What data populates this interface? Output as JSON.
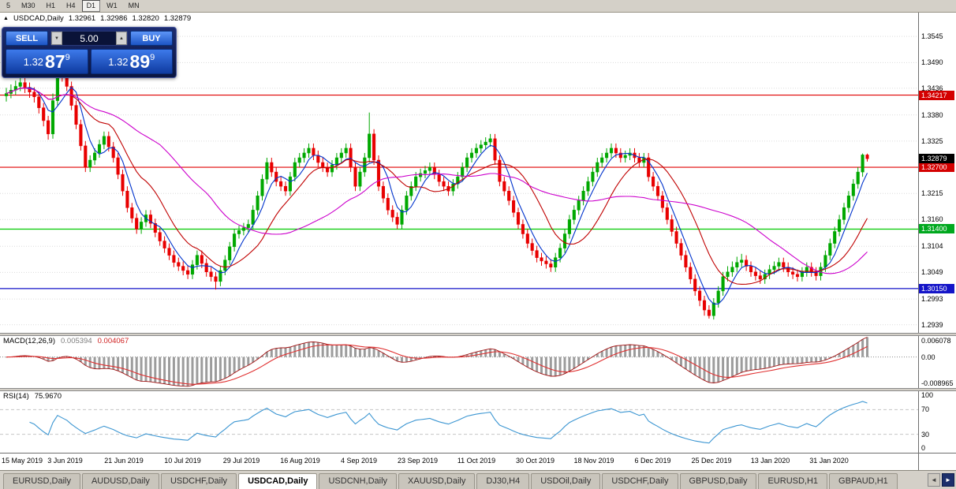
{
  "toolbar": {
    "timeframes": [
      {
        "label": "5",
        "active": false
      },
      {
        "label": "M30",
        "active": false
      },
      {
        "label": "H1",
        "active": false
      },
      {
        "label": "H4",
        "active": false
      },
      {
        "label": "D1",
        "active": true
      },
      {
        "label": "W1",
        "active": false
      },
      {
        "label": "MN",
        "active": false
      }
    ]
  },
  "chart_header": {
    "collapse_glyph": "▲",
    "symbol": "USDCAD,Daily",
    "open": "1.32961",
    "high": "1.32986",
    "low": "1.32820",
    "close": "1.32879"
  },
  "trade_panel": {
    "sell_label": "SELL",
    "buy_label": "BUY",
    "volume": "5.00",
    "spin_down": "▼",
    "spin_up": "▲",
    "sell_price": {
      "base": "1.32",
      "big": "87",
      "sup": "9"
    },
    "buy_price": {
      "base": "1.32",
      "big": "89",
      "sup": "9"
    }
  },
  "tabs": {
    "scroll_left": "◄",
    "scroll_right": "►",
    "items": [
      {
        "label": "EURUSD,Daily",
        "active": false
      },
      {
        "label": "AUDUSD,Daily",
        "active": false
      },
      {
        "label": "USDCHF,Daily",
        "active": false
      },
      {
        "label": "USDCAD,Daily",
        "active": true
      },
      {
        "label": "USDCNH,Daily",
        "active": false
      },
      {
        "label": "XAUUSD,Daily",
        "active": false
      },
      {
        "label": "DJ30,H4",
        "active": false
      },
      {
        "label": "USDOil,Daily",
        "active": false
      },
      {
        "label": "USDCHF,Daily",
        "active": false
      },
      {
        "label": "GBPUSD,Daily",
        "active": false
      },
      {
        "label": "EURUSD,H1",
        "active": false
      },
      {
        "label": "GBPAUD,H1",
        "active": false
      }
    ]
  },
  "chart_data": {
    "type": "candlestick",
    "title": "USDCAD,Daily",
    "ylim": [
      1.2922,
      1.3595
    ],
    "price_axis_ticks": [
      "1.3545",
      "1.3490",
      "1.3436",
      "1.3380",
      "1.3325",
      "1.3270",
      "1.3215",
      "1.3160",
      "1.3104",
      "1.3049",
      "1.2993",
      "1.2939"
    ],
    "x_labels": [
      "15 May 2019",
      "3 Jun 2019",
      "21 Jun 2019",
      "10 Jul 2019",
      "29 Jul 2019",
      "16 Aug 2019",
      "4 Sep 2019",
      "23 Sep 2019",
      "11 Oct 2019",
      "30 Oct 2019",
      "18 Nov 2019",
      "6 Dec 2019",
      "25 Dec 2019",
      "13 Jan 2020",
      "31 Jan 2020"
    ],
    "current_price": {
      "value": 1.32879,
      "label": "1.32879",
      "tag_bg": "#000000"
    },
    "hlines": [
      {
        "price": 1.34217,
        "label": "1.34217",
        "color": "#e00000",
        "tag_bg": "#d40000"
      },
      {
        "price": 1.327,
        "label": "1.32700",
        "color": "#e00000",
        "tag_bg": "#d40000"
      },
      {
        "price": 1.314,
        "label": "1.31400",
        "color": "#00ca00",
        "tag_bg": "#00a81e"
      },
      {
        "price": 1.3015,
        "label": "1.30150",
        "color": "#1414c8",
        "tag_bg": "#1414c8"
      }
    ],
    "candle_colors": {
      "up": "#00a800",
      "down": "#e80000"
    },
    "moving_averages": [
      {
        "period": 5,
        "color": "#0033cc"
      },
      {
        "period": 13,
        "color": "#c00000"
      },
      {
        "period": 34,
        "color": "#cc00cc"
      }
    ],
    "indicators": {
      "macd": {
        "name": "MACD(12,26,9)",
        "params": [
          12,
          26,
          9
        ],
        "value_main": "0.005394",
        "value_signal": "0.004067",
        "axis_labels": [
          "0.006078",
          "0.00",
          "-0.008965"
        ],
        "histogram_color": "#9c9c9c",
        "main_color": "#a01010",
        "signal_color": "#e03030"
      },
      "rsi": {
        "name": "RSI(14)",
        "period": 14,
        "value": "75.9670",
        "axis_labels": [
          "100",
          "70",
          "30",
          "0"
        ],
        "levels": [
          70,
          30
        ],
        "line_color": "#3c96d2"
      }
    },
    "candles_ohlc": [
      [
        1.342,
        1.3437,
        1.3408,
        1.3425
      ],
      [
        1.3425,
        1.3444,
        1.3415,
        1.3432
      ],
      [
        1.3432,
        1.3452,
        1.3422,
        1.344
      ],
      [
        1.344,
        1.346,
        1.343,
        1.3448
      ],
      [
        1.3448,
        1.3458,
        1.3426,
        1.3438
      ],
      [
        1.3438,
        1.3448,
        1.3416,
        1.3428
      ],
      [
        1.3428,
        1.3438,
        1.3406,
        1.3418
      ],
      [
        1.3418,
        1.3428,
        1.3383,
        1.3395
      ],
      [
        1.3395,
        1.3405,
        1.3356,
        1.3368
      ],
      [
        1.3368,
        1.3378,
        1.3328,
        1.334
      ],
      [
        1.334,
        1.3425,
        1.333,
        1.341
      ],
      [
        1.341,
        1.3492,
        1.34,
        1.348
      ],
      [
        1.348,
        1.349,
        1.345,
        1.346
      ],
      [
        1.346,
        1.347,
        1.343,
        1.344
      ],
      [
        1.344,
        1.345,
        1.339,
        1.34
      ],
      [
        1.34,
        1.341,
        1.335,
        1.336
      ],
      [
        1.336,
        1.337,
        1.3305,
        1.3315
      ],
      [
        1.3315,
        1.3325,
        1.326,
        1.327
      ],
      [
        1.327,
        1.3295,
        1.326,
        1.3285
      ],
      [
        1.3285,
        1.331,
        1.3275,
        1.33
      ],
      [
        1.33,
        1.3328,
        1.329,
        1.3318
      ],
      [
        1.3318,
        1.3345,
        1.3308,
        1.3335
      ],
      [
        1.3335,
        1.3345,
        1.3303,
        1.3313
      ],
      [
        1.3313,
        1.3323,
        1.328,
        1.329
      ],
      [
        1.329,
        1.33,
        1.3245,
        1.3255
      ],
      [
        1.3255,
        1.3265,
        1.321,
        1.322
      ],
      [
        1.322,
        1.323,
        1.3175,
        1.3185
      ],
      [
        1.3185,
        1.3195,
        1.3153,
        1.3163
      ],
      [
        1.3163,
        1.3173,
        1.313,
        1.314
      ],
      [
        1.314,
        1.3165,
        1.313,
        1.3155
      ],
      [
        1.3155,
        1.318,
        1.3145,
        1.317
      ],
      [
        1.317,
        1.318,
        1.3142,
        1.3152
      ],
      [
        1.3152,
        1.3162,
        1.3123,
        1.3133
      ],
      [
        1.3133,
        1.3143,
        1.3105,
        1.3115
      ],
      [
        1.3115,
        1.3125,
        1.309,
        1.31
      ],
      [
        1.31,
        1.311,
        1.3075,
        1.3085
      ],
      [
        1.3085,
        1.3095,
        1.306,
        1.307
      ],
      [
        1.307,
        1.308,
        1.3052,
        1.3062
      ],
      [
        1.3062,
        1.3072,
        1.3043,
        1.3053
      ],
      [
        1.3053,
        1.3063,
        1.3035,
        1.3045
      ],
      [
        1.3045,
        1.3075,
        1.3035,
        1.3065
      ],
      [
        1.3065,
        1.3095,
        1.3055,
        1.3085
      ],
      [
        1.3085,
        1.3095,
        1.3058,
        1.3068
      ],
      [
        1.3068,
        1.3078,
        1.304,
        1.305
      ],
      [
        1.305,
        1.306,
        1.303,
        1.304
      ],
      [
        1.304,
        1.305,
        1.3013,
        1.303
      ],
      [
        1.303,
        1.3063,
        1.302,
        1.3053
      ],
      [
        1.3053,
        1.3085,
        1.3043,
        1.3075
      ],
      [
        1.3075,
        1.3113,
        1.3065,
        1.3103
      ],
      [
        1.3103,
        1.314,
        1.3093,
        1.313
      ],
      [
        1.313,
        1.3147,
        1.312,
        1.3137
      ],
      [
        1.3137,
        1.3153,
        1.3127,
        1.3143
      ],
      [
        1.3143,
        1.316,
        1.3133,
        1.315
      ],
      [
        1.315,
        1.319,
        1.314,
        1.318
      ],
      [
        1.318,
        1.322,
        1.317,
        1.321
      ],
      [
        1.321,
        1.3255,
        1.32,
        1.3245
      ],
      [
        1.3245,
        1.329,
        1.3235,
        1.328
      ],
      [
        1.328,
        1.329,
        1.325,
        1.326
      ],
      [
        1.326,
        1.327,
        1.323,
        1.324
      ],
      [
        1.324,
        1.325,
        1.322,
        1.323
      ],
      [
        1.323,
        1.324,
        1.321,
        1.322
      ],
      [
        1.322,
        1.326,
        1.321,
        1.325
      ],
      [
        1.325,
        1.329,
        1.324,
        1.328
      ],
      [
        1.328,
        1.33,
        1.327,
        1.329
      ],
      [
        1.329,
        1.331,
        1.328,
        1.33
      ],
      [
        1.33,
        1.332,
        1.329,
        1.331
      ],
      [
        1.331,
        1.332,
        1.3285,
        1.3295
      ],
      [
        1.3295,
        1.3305,
        1.327,
        1.328
      ],
      [
        1.328,
        1.329,
        1.326,
        1.327
      ],
      [
        1.327,
        1.328,
        1.325,
        1.326
      ],
      [
        1.326,
        1.3285,
        1.325,
        1.3275
      ],
      [
        1.3275,
        1.33,
        1.3265,
        1.329
      ],
      [
        1.329,
        1.331,
        1.328,
        1.33
      ],
      [
        1.33,
        1.332,
        1.329,
        1.331
      ],
      [
        1.331,
        1.332,
        1.326,
        1.327
      ],
      [
        1.327,
        1.328,
        1.322,
        1.323
      ],
      [
        1.323,
        1.327,
        1.322,
        1.326
      ],
      [
        1.326,
        1.33,
        1.325,
        1.329
      ],
      [
        1.329,
        1.3385,
        1.328,
        1.334
      ],
      [
        1.334,
        1.335,
        1.3275,
        1.3285
      ],
      [
        1.3285,
        1.3295,
        1.322,
        1.323
      ],
      [
        1.323,
        1.324,
        1.3195,
        1.3205
      ],
      [
        1.3205,
        1.3215,
        1.317,
        1.318
      ],
      [
        1.318,
        1.319,
        1.3155,
        1.3165
      ],
      [
        1.3165,
        1.3175,
        1.314,
        1.315
      ],
      [
        1.315,
        1.319,
        1.314,
        1.318
      ],
      [
        1.318,
        1.322,
        1.317,
        1.321
      ],
      [
        1.321,
        1.324,
        1.32,
        1.323
      ],
      [
        1.323,
        1.326,
        1.322,
        1.325
      ],
      [
        1.325,
        1.3267,
        1.324,
        1.3257
      ],
      [
        1.3257,
        1.3273,
        1.3247,
        1.3263
      ],
      [
        1.3263,
        1.328,
        1.3253,
        1.327
      ],
      [
        1.327,
        1.328,
        1.3245,
        1.3255
      ],
      [
        1.3255,
        1.3265,
        1.323,
        1.324
      ],
      [
        1.324,
        1.325,
        1.322,
        1.323
      ],
      [
        1.323,
        1.324,
        1.321,
        1.322
      ],
      [
        1.322,
        1.3245,
        1.321,
        1.3235
      ],
      [
        1.3235,
        1.326,
        1.3225,
        1.325
      ],
      [
        1.325,
        1.328,
        1.324,
        1.327
      ],
      [
        1.327,
        1.33,
        1.326,
        1.329
      ],
      [
        1.329,
        1.331,
        1.328,
        1.33
      ],
      [
        1.33,
        1.332,
        1.329,
        1.331
      ],
      [
        1.331,
        1.3327,
        1.33,
        1.3317
      ],
      [
        1.3317,
        1.3333,
        1.3307,
        1.3323
      ],
      [
        1.3323,
        1.334,
        1.3313,
        1.333
      ],
      [
        1.333,
        1.334,
        1.3275,
        1.3285
      ],
      [
        1.3285,
        1.3295,
        1.323,
        1.324
      ],
      [
        1.324,
        1.325,
        1.321,
        1.322
      ],
      [
        1.322,
        1.323,
        1.319,
        1.32
      ],
      [
        1.32,
        1.321,
        1.3165,
        1.3175
      ],
      [
        1.3175,
        1.3185,
        1.314,
        1.315
      ],
      [
        1.315,
        1.316,
        1.312,
        1.313
      ],
      [
        1.313,
        1.314,
        1.31,
        1.311
      ],
      [
        1.311,
        1.312,
        1.3085,
        1.3095
      ],
      [
        1.3095,
        1.3105,
        1.307,
        1.308
      ],
      [
        1.308,
        1.309,
        1.3063,
        1.3073
      ],
      [
        1.3073,
        1.3083,
        1.3057,
        1.3067
      ],
      [
        1.3067,
        1.3077,
        1.305,
        1.306
      ],
      [
        1.306,
        1.309,
        1.305,
        1.308
      ],
      [
        1.308,
        1.311,
        1.307,
        1.31
      ],
      [
        1.31,
        1.314,
        1.309,
        1.313
      ],
      [
        1.313,
        1.317,
        1.312,
        1.316
      ],
      [
        1.316,
        1.319,
        1.315,
        1.318
      ],
      [
        1.318,
        1.321,
        1.317,
        1.32
      ],
      [
        1.32,
        1.323,
        1.319,
        1.322
      ],
      [
        1.322,
        1.325,
        1.321,
        1.324
      ],
      [
        1.324,
        1.327,
        1.323,
        1.326
      ],
      [
        1.326,
        1.329,
        1.325,
        1.328
      ],
      [
        1.328,
        1.33,
        1.327,
        1.329
      ],
      [
        1.329,
        1.331,
        1.328,
        1.33
      ],
      [
        1.33,
        1.332,
        1.329,
        1.331
      ],
      [
        1.331,
        1.332,
        1.329,
        1.33
      ],
      [
        1.33,
        1.331,
        1.328,
        1.329
      ],
      [
        1.329,
        1.3305,
        1.328,
        1.3295
      ],
      [
        1.3295,
        1.331,
        1.3285,
        1.33
      ],
      [
        1.33,
        1.331,
        1.328,
        1.329
      ],
      [
        1.329,
        1.33,
        1.327,
        1.328
      ],
      [
        1.328,
        1.33,
        1.327,
        1.329
      ],
      [
        1.329,
        1.33,
        1.324,
        1.325
      ],
      [
        1.325,
        1.326,
        1.322,
        1.323
      ],
      [
        1.323,
        1.324,
        1.32,
        1.321
      ],
      [
        1.321,
        1.322,
        1.3175,
        1.3185
      ],
      [
        1.3185,
        1.3195,
        1.315,
        1.316
      ],
      [
        1.316,
        1.317,
        1.3125,
        1.3135
      ],
      [
        1.3135,
        1.3145,
        1.31,
        1.311
      ],
      [
        1.311,
        1.312,
        1.3075,
        1.3085
      ],
      [
        1.3085,
        1.3095,
        1.305,
        1.306
      ],
      [
        1.306,
        1.307,
        1.3025,
        1.3035
      ],
      [
        1.3035,
        1.3045,
        1.3,
        1.301
      ],
      [
        1.301,
        1.302,
        1.2978,
        1.299
      ],
      [
        1.299,
        1.3,
        1.2958,
        1.297
      ],
      [
        1.297,
        1.298,
        1.2952,
        1.2958
      ],
      [
        1.2958,
        1.2995,
        1.295,
        1.2985
      ],
      [
        1.2985,
        1.302,
        1.2975,
        1.301
      ],
      [
        1.301,
        1.305,
        1.3,
        1.304
      ],
      [
        1.304,
        1.3062,
        1.303,
        1.305
      ],
      [
        1.305,
        1.3072,
        1.304,
        1.306
      ],
      [
        1.306,
        1.3082,
        1.305,
        1.307
      ],
      [
        1.307,
        1.3088,
        1.306,
        1.3075
      ],
      [
        1.3075,
        1.3085,
        1.3052,
        1.3062
      ],
      [
        1.3062,
        1.3072,
        1.304,
        1.305
      ],
      [
        1.305,
        1.306,
        1.3032,
        1.3042
      ],
      [
        1.3042,
        1.3052,
        1.3025,
        1.3035
      ],
      [
        1.3035,
        1.3055,
        1.3025,
        1.3045
      ],
      [
        1.3045,
        1.3065,
        1.3035,
        1.3055
      ],
      [
        1.3055,
        1.3072,
        1.3045,
        1.3062
      ],
      [
        1.3062,
        1.308,
        1.3052,
        1.307
      ],
      [
        1.307,
        1.308,
        1.305,
        1.306
      ],
      [
        1.306,
        1.307,
        1.304,
        1.305
      ],
      [
        1.305,
        1.306,
        1.3035,
        1.3045
      ],
      [
        1.3045,
        1.3055,
        1.303,
        1.304
      ],
      [
        1.304,
        1.306,
        1.303,
        1.305
      ],
      [
        1.305,
        1.307,
        1.304,
        1.306
      ],
      [
        1.306,
        1.307,
        1.304,
        1.305
      ],
      [
        1.305,
        1.306,
        1.3032,
        1.3042
      ],
      [
        1.3042,
        1.307,
        1.3032,
        1.306
      ],
      [
        1.306,
        1.3095,
        1.305,
        1.3085
      ],
      [
        1.3085,
        1.312,
        1.3075,
        1.311
      ],
      [
        1.311,
        1.3145,
        1.31,
        1.3135
      ],
      [
        1.3135,
        1.317,
        1.3125,
        1.316
      ],
      [
        1.316,
        1.3195,
        1.315,
        1.3185
      ],
      [
        1.3185,
        1.322,
        1.3175,
        1.321
      ],
      [
        1.321,
        1.3245,
        1.32,
        1.3235
      ],
      [
        1.3235,
        1.327,
        1.3225,
        1.326
      ],
      [
        1.326,
        1.3299,
        1.325,
        1.3296
      ],
      [
        1.3296,
        1.32986,
        1.3282,
        1.32879
      ]
    ]
  }
}
